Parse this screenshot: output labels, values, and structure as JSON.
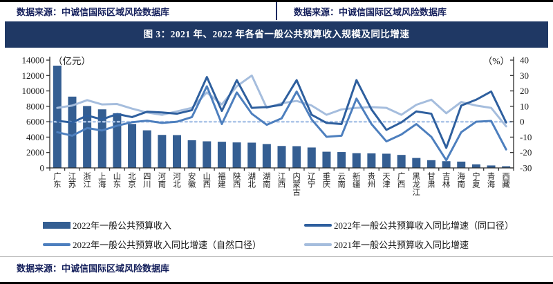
{
  "header": {
    "source_left": "数据来源：中诚信国际区域风险数据库",
    "source_right": "数据来源：中诚信国际区域风险数据库"
  },
  "figure": {
    "title": "图 3：2021 年、2022 年各省一般公共预算收入规模及同比增速"
  },
  "footer": {
    "source": "数据来源：中诚信国际区域风险数据库"
  },
  "colors": {
    "title_bg": "#1f3864",
    "title_text": "#ffffff",
    "source_text": "#15205c",
    "axis": "#2b2b2b",
    "bar": "#345e92",
    "line_2022_same_caliber": "#2e5f9e",
    "line_2022_natural_caliber": "#4d7fbe",
    "line_2021": "#a5bddd",
    "zero_dotted": "#aec6e8",
    "tick_text": "#1a1a1a"
  },
  "chart_data": {
    "type": "bar+line combo",
    "title": "2021年、2022年各省一般公共预算收入规模及同比增速",
    "left_axis": {
      "label": "（亿元）",
      "min": 0,
      "max": 14000,
      "step": 2000,
      "ticks": [
        14000,
        12000,
        10000,
        8000,
        6000,
        4000,
        2000,
        0
      ]
    },
    "right_axis": {
      "label": "（%）",
      "min": -30,
      "max": 40,
      "step": 10,
      "ticks": [
        40,
        30,
        20,
        10,
        0,
        -10,
        -20,
        -30
      ]
    },
    "grid": false,
    "legend_position": "bottom",
    "categories": [
      "广东",
      "江苏",
      "浙江",
      "上海",
      "山东",
      "北京",
      "四川",
      "河南",
      "河北",
      "安徽",
      "山西",
      "福建",
      "陕西",
      "湖北",
      "湖南",
      "江西",
      "内蒙古",
      "辽宁",
      "重庆",
      "云南",
      "新疆",
      "贵州",
      "天津",
      "广西",
      "黑龙江",
      "甘肃",
      "吉林",
      "海南",
      "宁夏",
      "青海",
      "西藏"
    ],
    "series": [
      {
        "name": "2022年一般公共预算收入",
        "type": "bar",
        "axis": "left",
        "values": [
          13280,
          9259,
          8039,
          7608,
          7104,
          5714,
          4882,
          4286,
          4262,
          3589,
          3454,
          3399,
          3311,
          3281,
          3102,
          2848,
          2824,
          2652,
          2103,
          2059,
          1913,
          1886,
          1847,
          1687,
          1291,
          1002,
          876,
          819,
          463,
          320,
          216
        ]
      },
      {
        "name": "2022年一般公共预算收入同比增速（同口径）",
        "type": "line",
        "axis": "right",
        "values": [
          0.6,
          -0.5,
          4.0,
          1.5,
          5.0,
          3.0,
          6.5,
          6.0,
          5.2,
          7.5,
          29.0,
          7.0,
          27.0,
          9.0,
          9.5,
          11.0,
          27.0,
          4.5,
          -0.8,
          -1.5,
          27.0,
          8.0,
          -5.3,
          -0.4,
          6.7,
          5.2,
          -17.0,
          10.5,
          14.3,
          19.6,
          -0.5
        ]
      },
      {
        "name": "2022年一般公共预算收入同比增速（自然口径）",
        "type": "line",
        "axis": "right",
        "values": [
          -6.8,
          -9.1,
          -4.1,
          -5.7,
          -2.6,
          -0.3,
          0.7,
          -0.8,
          0.0,
          3.0,
          23.0,
          -1.5,
          19.0,
          5.2,
          -2.0,
          2.2,
          19.6,
          1.5,
          -9.8,
          -9.1,
          15.0,
          -1.5,
          -12.8,
          -8.3,
          -1.5,
          -9.8,
          -25.0,
          -6.8,
          0.0,
          0.5,
          -18.0
        ]
      },
      {
        "name": "2021年一般公共预算收入同比增速",
        "type": "line",
        "axis": "right",
        "values": [
          9.0,
          10.5,
          14.0,
          11.2,
          11.5,
          8.5,
          6.0,
          4.5,
          6.7,
          9.0,
          19.0,
          11.2,
          23.0,
          30.0,
          9.0,
          12.0,
          13.5,
          10.5,
          4.5,
          8.0,
          9.0,
          9.5,
          9.0,
          4.5,
          11.0,
          14.3,
          5.5,
          12.8,
          10.5,
          9.0,
          -3.0
        ]
      }
    ]
  }
}
